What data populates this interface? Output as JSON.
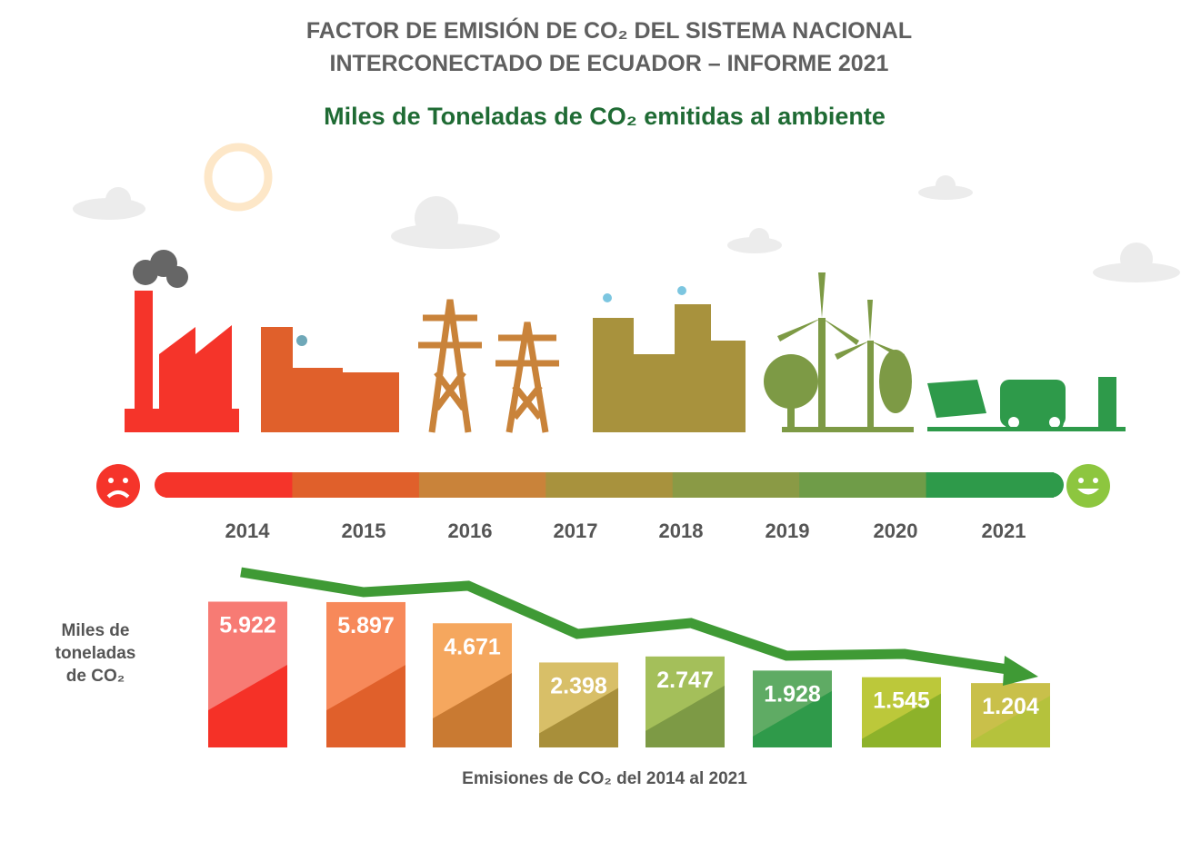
{
  "header": {
    "title_line1": "FACTOR DE EMISIÓN DE CO₂ DEL SISTEMA NACIONAL",
    "title_line2": "INTERCONECTADO DE ECUADOR – INFORME 2021",
    "subtitle": "Miles de Toneladas de CO₂ emitidas al ambiente"
  },
  "scale": {
    "years": [
      "2014",
      "2015",
      "2016",
      "2017",
      "2018",
      "2019",
      "2020",
      "2021"
    ],
    "segment_colors": [
      "#f5342a",
      "#e0602b",
      "#c9833a",
      "#a8923d",
      "#8a9a45",
      "#6f9c48",
      "#2e9a4a"
    ],
    "sad_icon": "sad-face-icon",
    "happy_icon": "happy-face-icon"
  },
  "chart_data": {
    "type": "bar",
    "title": "Emisiones de CO₂ del 2014 al 2021",
    "xlabel": "Emisiones de CO₂ del 2014 al 2021",
    "ylabel": "Miles de toneladas de CO₂",
    "categories": [
      "2014",
      "2015",
      "2016",
      "2017",
      "2018",
      "2019",
      "2020",
      "2021"
    ],
    "values": [
      5.922,
      5.897,
      4.671,
      2.398,
      2.747,
      1.928,
      1.545,
      1.204
    ],
    "value_labels": [
      "5.922",
      "5.897",
      "4.671",
      "2.398",
      "2.747",
      "1.928",
      "1.545",
      "1.204"
    ],
    "colors_light": [
      "#f77b74",
      "#f7895a",
      "#f5a75e",
      "#d8bf68",
      "#a4bf5a",
      "#5fab64",
      "#bcc83a",
      "#c9c04a"
    ],
    "colors_dark": [
      "#f53127",
      "#e0602b",
      "#c97a32",
      "#a88f3a",
      "#7d9a45",
      "#2f9a4a",
      "#8db22a",
      "#b5c23c"
    ],
    "trend_arrow": "decreasing",
    "trend_color": "#3f9a35"
  },
  "ylabel_lines": [
    "Miles de",
    "toneladas",
    "de CO₂"
  ]
}
